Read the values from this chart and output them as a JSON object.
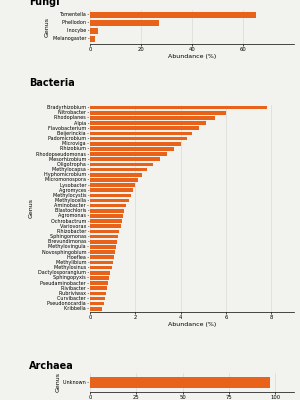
{
  "fungi": {
    "labels": [
      "Tomentella",
      "Phellodon",
      "Inocybe",
      "Melanogaster"
    ],
    "values": [
      65,
      27,
      3,
      2
    ],
    "xlim": [
      0,
      80
    ],
    "xticks": [
      0,
      20,
      40,
      60
    ],
    "xlabel": "Abundance (%)"
  },
  "bacteria": {
    "labels": [
      "Bradyrhizobium",
      "Nitrobacter",
      "Rhodoplanes",
      "Alpia",
      "Flavobacterium",
      "Beijerinckia",
      "Padomicrobium",
      "Microviga",
      "Rhizobium",
      "Rhodopseudomonas",
      "Mesorhizobium",
      "Oligotropha",
      "Methylocapsa",
      "Hyphomicrobium",
      "Micromonospora",
      "Lysobacter",
      "Agromyces",
      "Methylocystis",
      "Methylocella",
      "Aminobacter",
      "Blastochloris",
      "Agromonas",
      "Ochrobactrum",
      "Variovorax",
      "Rhizobacter",
      "Sphingomonas",
      "Brevundimonas",
      "Methylovingula",
      "Novosphingobium",
      "Hoeflea",
      "Methylibium",
      "Methylosinus",
      "Dactylosporangium",
      "Sphingopyxis",
      "Pseudaminobacter",
      "Rivibacter",
      "Rubriviwax",
      "Curvibacter",
      "Pseudonocardia",
      "Kribbella"
    ],
    "values": [
      7.8,
      6.0,
      5.5,
      5.1,
      4.8,
      4.5,
      4.3,
      4.0,
      3.7,
      3.4,
      3.1,
      2.8,
      2.5,
      2.3,
      2.1,
      2.0,
      1.9,
      1.8,
      1.7,
      1.6,
      1.5,
      1.45,
      1.4,
      1.35,
      1.3,
      1.25,
      1.2,
      1.15,
      1.1,
      1.05,
      1.0,
      0.95,
      0.9,
      0.85,
      0.8,
      0.75,
      0.7,
      0.65,
      0.6,
      0.55
    ],
    "xlim": [
      0,
      9
    ],
    "xticks": [
      0,
      2,
      4,
      6,
      8
    ],
    "xlabel": "Abundance (%)"
  },
  "archaea": {
    "labels": [
      "Unknown"
    ],
    "values": [
      97
    ],
    "xlim": [
      0,
      110
    ],
    "xticks": [
      0,
      25,
      50,
      75,
      100
    ],
    "xlabel": "Abundance (%)"
  },
  "bar_color": "#E8621A",
  "section_titles": [
    "Fungi",
    "Bacteria",
    "Archaea"
  ],
  "ylabel": "Genus",
  "bg_color": "#F2F2EE"
}
